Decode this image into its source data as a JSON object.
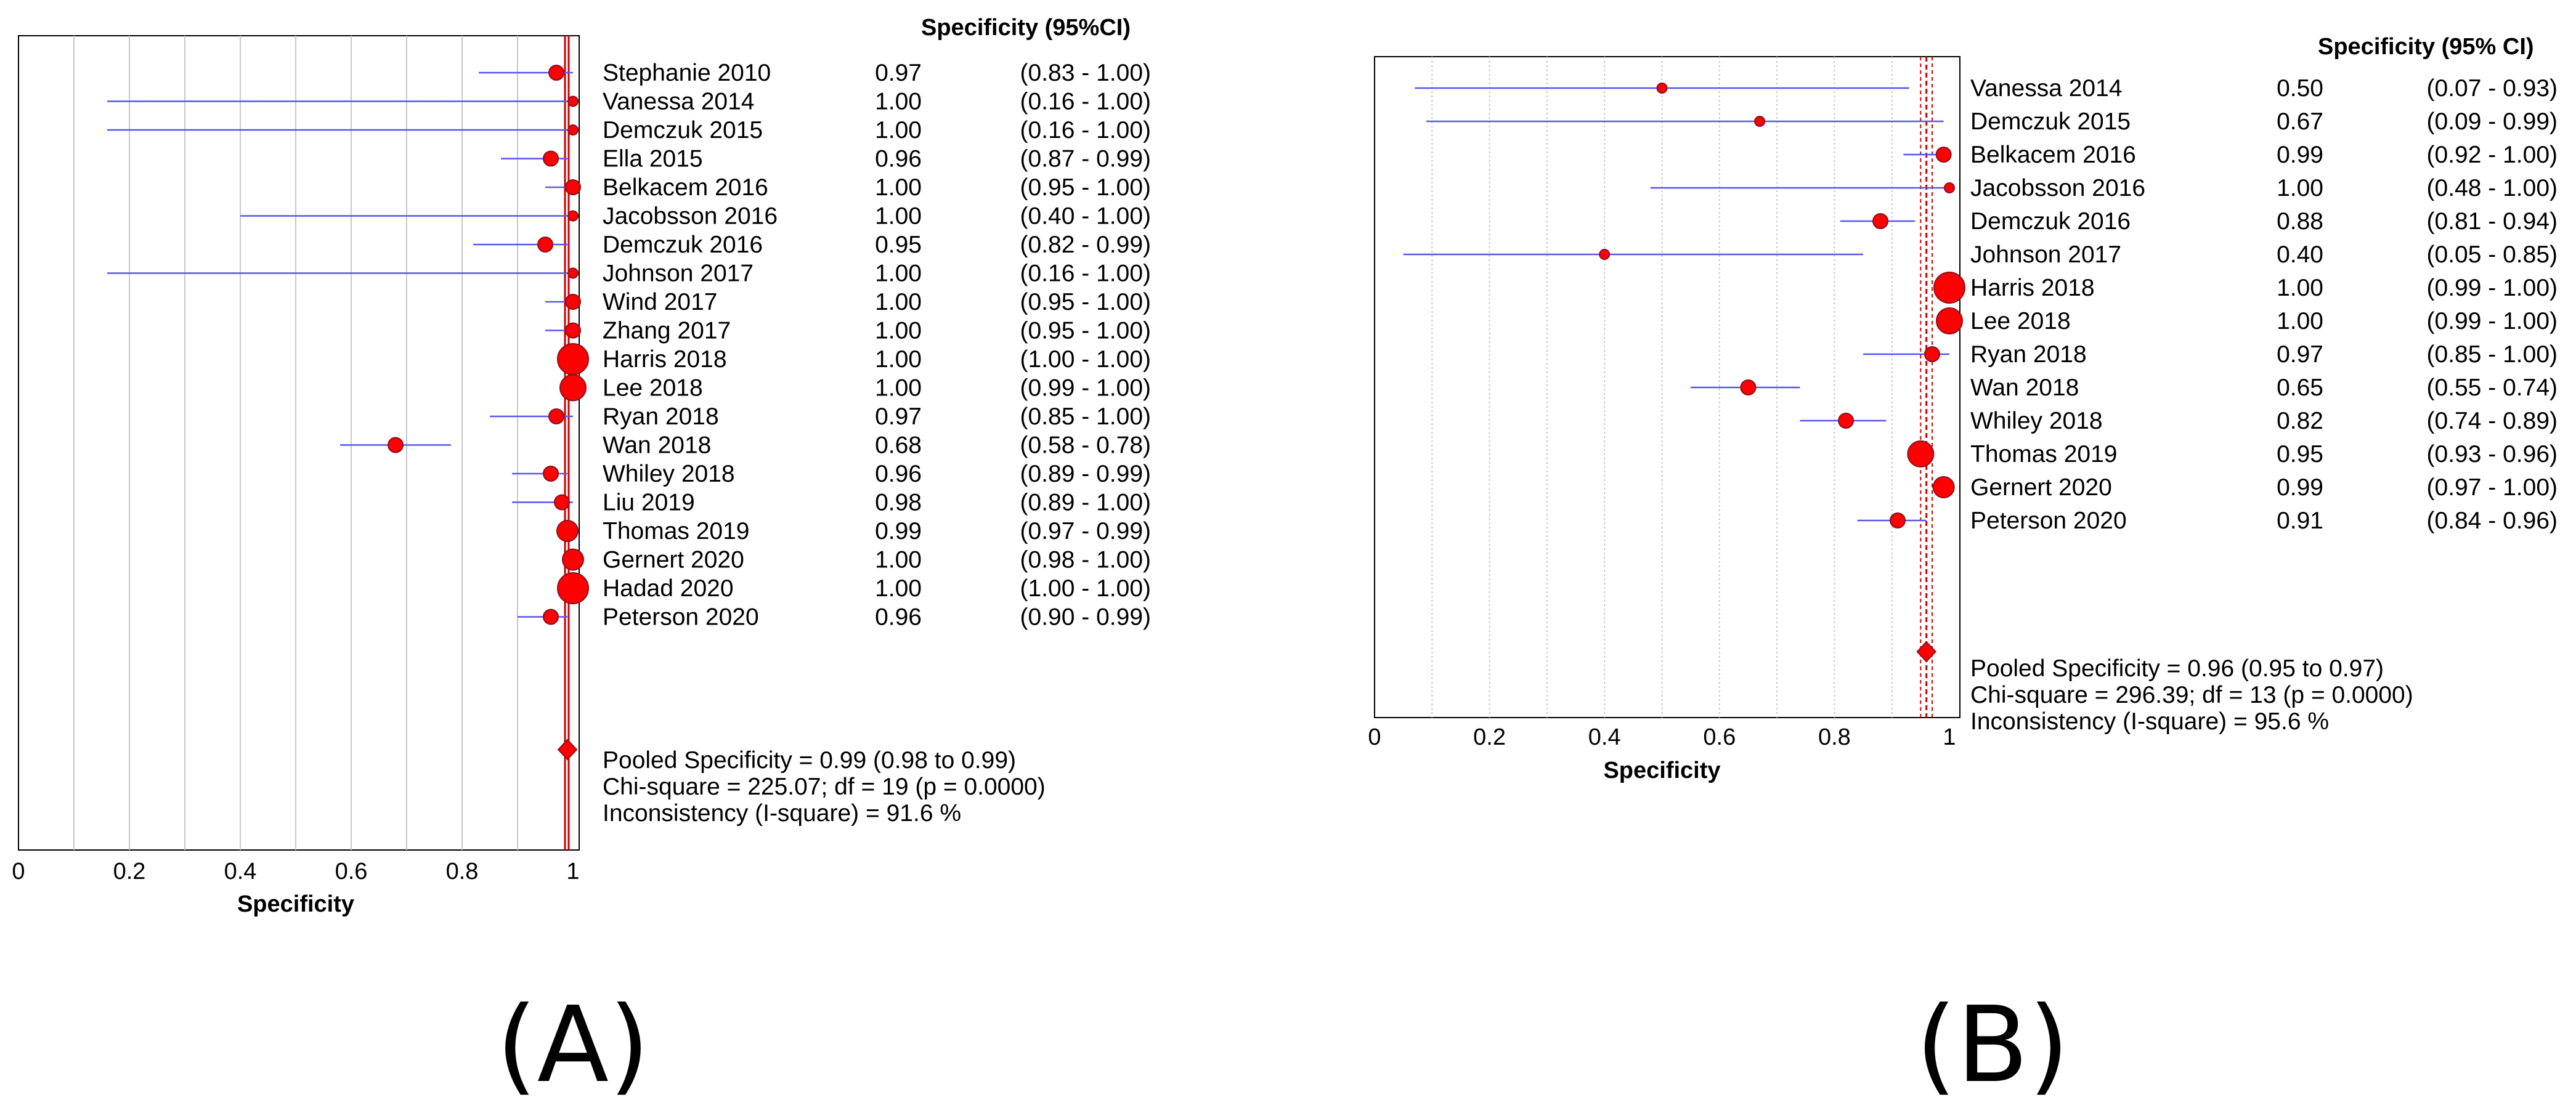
{
  "chart_data": [
    {
      "type": "forest",
      "panel_label": "(A)",
      "header": "Specificity (95%CI)",
      "xlabel": "Specificity",
      "xlim": [
        0,
        1
      ],
      "xticks": [
        "0",
        "0.2",
        "0.4",
        "0.6",
        "0.8",
        "1"
      ],
      "studies": [
        {
          "name": "Stephanie 2010",
          "value": 0.97,
          "low": 0.83,
          "high": 1.0,
          "val_text": "0.97",
          "ci_text": "(0.83 - 1.00)",
          "weight": 2
        },
        {
          "name": "Vanessa 2014",
          "value": 1.0,
          "low": 0.16,
          "high": 1.0,
          "val_text": "1.00",
          "ci_text": "(0.16 - 1.00)",
          "weight": 1
        },
        {
          "name": "Demczuk 2015",
          "value": 1.0,
          "low": 0.16,
          "high": 1.0,
          "val_text": "1.00",
          "ci_text": "(0.16 - 1.00)",
          "weight": 1
        },
        {
          "name": "Ella 2015",
          "value": 0.96,
          "low": 0.87,
          "high": 0.99,
          "val_text": "0.96",
          "ci_text": "(0.87 - 0.99)",
          "weight": 2
        },
        {
          "name": "Belkacem 2016",
          "value": 1.0,
          "low": 0.95,
          "high": 1.0,
          "val_text": "1.00",
          "ci_text": "(0.95 - 1.00)",
          "weight": 2
        },
        {
          "name": "Jacobsson 2016",
          "value": 1.0,
          "low": 0.4,
          "high": 1.0,
          "val_text": "1.00",
          "ci_text": "(0.40 - 1.00)",
          "weight": 1
        },
        {
          "name": "Demczuk 2016",
          "value": 0.95,
          "low": 0.82,
          "high": 0.99,
          "val_text": "0.95",
          "ci_text": "(0.82 - 0.99)",
          "weight": 2
        },
        {
          "name": "Johnson 2017",
          "value": 1.0,
          "low": 0.16,
          "high": 1.0,
          "val_text": "1.00",
          "ci_text": "(0.16 - 1.00)",
          "weight": 1
        },
        {
          "name": "Wind 2017",
          "value": 1.0,
          "low": 0.95,
          "high": 1.0,
          "val_text": "1.00",
          "ci_text": "(0.95 - 1.00)",
          "weight": 2
        },
        {
          "name": "Zhang 2017",
          "value": 1.0,
          "low": 0.95,
          "high": 1.0,
          "val_text": "1.00",
          "ci_text": "(0.95 - 1.00)",
          "weight": 2
        },
        {
          "name": "Harris 2018",
          "value": 1.0,
          "low": 1.0,
          "high": 1.0,
          "val_text": "1.00",
          "ci_text": "(1.00 - 1.00)",
          "weight": 5
        },
        {
          "name": "Lee 2018",
          "value": 1.0,
          "low": 0.99,
          "high": 1.0,
          "val_text": "1.00",
          "ci_text": "(0.99 - 1.00)",
          "weight": 4
        },
        {
          "name": "Ryan 2018",
          "value": 0.97,
          "low": 0.85,
          "high": 1.0,
          "val_text": "0.97",
          "ci_text": "(0.85 - 1.00)",
          "weight": 2
        },
        {
          "name": "Wan 2018",
          "value": 0.68,
          "low": 0.58,
          "high": 0.78,
          "val_text": "0.68",
          "ci_text": "(0.58 - 0.78)",
          "weight": 2
        },
        {
          "name": "Whiley 2018",
          "value": 0.96,
          "low": 0.89,
          "high": 0.99,
          "val_text": "0.96",
          "ci_text": "(0.89 - 0.99)",
          "weight": 2
        },
        {
          "name": "Liu 2019",
          "value": 0.98,
          "low": 0.89,
          "high": 1.0,
          "val_text": "0.98",
          "ci_text": "(0.89 - 1.00)",
          "weight": 2
        },
        {
          "name": "Thomas 2019",
          "value": 0.99,
          "low": 0.97,
          "high": 0.99,
          "val_text": "0.99",
          "ci_text": "(0.97 - 0.99)",
          "weight": 3
        },
        {
          "name": "Gernert 2020",
          "value": 1.0,
          "low": 0.98,
          "high": 1.0,
          "val_text": "1.00",
          "ci_text": "(0.98 - 1.00)",
          "weight": 3
        },
        {
          "name": "Hadad 2020",
          "value": 1.0,
          "low": 1.0,
          "high": 1.0,
          "val_text": "1.00",
          "ci_text": "(1.00 - 1.00)",
          "weight": 5
        },
        {
          "name": "Peterson 2020",
          "value": 0.96,
          "low": 0.9,
          "high": 0.99,
          "val_text": "0.96",
          "ci_text": "(0.90 - 0.99)",
          "weight": 2
        }
      ],
      "pooled": {
        "value": 0.99,
        "low": 0.98,
        "high": 0.99
      },
      "stats": [
        "Pooled Specificity = 0.99 (0.98 to 0.99)",
        "Chi-square = 225.07; df =  19 (p = 0.0000)",
        "Inconsistency (I-square) = 91.6 %"
      ]
    },
    {
      "type": "forest",
      "panel_label": "(B)",
      "header": "Specificity (95% CI)",
      "xlabel": "Specificity",
      "xlim": [
        0,
        1
      ],
      "xticks": [
        "0",
        "0.2",
        "0.4",
        "0.6",
        "0.8",
        "1"
      ],
      "studies": [
        {
          "name": "Vanessa 2014",
          "value": 0.5,
          "low": 0.07,
          "high": 0.93,
          "val_text": "0.50",
          "ci_text": "(0.07 - 0.93)",
          "weight": 1
        },
        {
          "name": "Demczuk 2015",
          "value": 0.67,
          "low": 0.09,
          "high": 0.99,
          "val_text": "0.67",
          "ci_text": "(0.09 - 0.99)",
          "weight": 1
        },
        {
          "name": "Belkacem 2016",
          "value": 0.99,
          "low": 0.92,
          "high": 1.0,
          "val_text": "0.99",
          "ci_text": "(0.92 - 1.00)",
          "weight": 2
        },
        {
          "name": "Jacobsson 2016",
          "value": 1.0,
          "low": 0.48,
          "high": 1.0,
          "val_text": "1.00",
          "ci_text": "(0.48 - 1.00)",
          "weight": 1
        },
        {
          "name": "Demczuk 2016",
          "value": 0.88,
          "low": 0.81,
          "high": 0.94,
          "val_text": "0.88",
          "ci_text": "(0.81 - 0.94)",
          "weight": 2
        },
        {
          "name": "Johnson 2017",
          "value": 0.4,
          "low": 0.05,
          "high": 0.85,
          "val_text": "0.40",
          "ci_text": "(0.05 - 0.85)",
          "weight": 1
        },
        {
          "name": "Harris 2018",
          "value": 1.0,
          "low": 0.99,
          "high": 1.0,
          "val_text": "1.00",
          "ci_text": "(0.99 - 1.00)",
          "weight": 5
        },
        {
          "name": "Lee 2018",
          "value": 1.0,
          "low": 0.99,
          "high": 1.0,
          "val_text": "1.00",
          "ci_text": "(0.99 - 1.00)",
          "weight": 4
        },
        {
          "name": "Ryan 2018",
          "value": 0.97,
          "low": 0.85,
          "high": 1.0,
          "val_text": "0.97",
          "ci_text": "(0.85 - 1.00)",
          "weight": 2
        },
        {
          "name": "Wan 2018",
          "value": 0.65,
          "low": 0.55,
          "high": 0.74,
          "val_text": "0.65",
          "ci_text": "(0.55 - 0.74)",
          "weight": 2
        },
        {
          "name": "Whiley 2018",
          "value": 0.82,
          "low": 0.74,
          "high": 0.89,
          "val_text": "0.82",
          "ci_text": "(0.74 - 0.89)",
          "weight": 2
        },
        {
          "name": "Thomas 2019",
          "value": 0.95,
          "low": 0.93,
          "high": 0.96,
          "val_text": "0.95",
          "ci_text": "(0.93 - 0.96)",
          "weight": 4
        },
        {
          "name": "Gernert 2020",
          "value": 0.99,
          "low": 0.97,
          "high": 1.0,
          "val_text": "0.99",
          "ci_text": "(0.97 - 1.00)",
          "weight": 3
        },
        {
          "name": "Peterson 2020",
          "value": 0.91,
          "low": 0.84,
          "high": 0.96,
          "val_text": "0.91",
          "ci_text": "(0.84 - 0.96)",
          "weight": 2
        }
      ],
      "pooled": {
        "value": 0.96,
        "low": 0.95,
        "high": 0.97
      },
      "stats": [
        "Pooled Specificity = 0.96 (0.95 to 0.97)",
        "Chi-square = 296.39; df =  13 (p = 0.0000)",
        "Inconsistency (I-square) = 95.6 %"
      ]
    }
  ],
  "colors": {
    "ci_line": "#5555ee",
    "marker_fill": "#ff0000",
    "marker_stroke": "#8a1020",
    "pooled_line": "#cc0000",
    "grid": "#c8c8c8",
    "frame": "#000000"
  }
}
